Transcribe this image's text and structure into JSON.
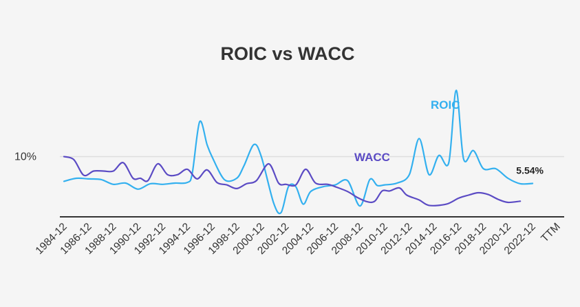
{
  "chart_data": {
    "type": "line",
    "title": "ROIC vs WACC",
    "xlabel": "",
    "ylabel": "",
    "ylim": [
      0,
      20
    ],
    "yticks": [
      {
        "value": 10,
        "label": "10%"
      }
    ],
    "grid": true,
    "categories": [
      "1984-12",
      "1986-12",
      "1988-12",
      "1990-12",
      "1992-12",
      "1994-12",
      "1996-12",
      "1998-12",
      "2000-12",
      "2002-12",
      "2004-12",
      "2006-12",
      "2008-12",
      "2010-12",
      "2012-12",
      "2014-12",
      "2016-12",
      "2018-12",
      "2020-12",
      "2022-12",
      "TTM"
    ],
    "series": [
      {
        "name": "ROIC",
        "label": "ROIC",
        "color": "#33b0ef",
        "points": [
          [
            0,
            5.9
          ],
          [
            0.5,
            6.4
          ],
          [
            1,
            6.3
          ],
          [
            1.5,
            6.2
          ],
          [
            2,
            5.4
          ],
          [
            2.5,
            5.6
          ],
          [
            3,
            4.6
          ],
          [
            3.5,
            5.5
          ],
          [
            4,
            5.4
          ],
          [
            4.5,
            5.6
          ],
          [
            5,
            5.7
          ],
          [
            5.2,
            7.2
          ],
          [
            5.5,
            15.8
          ],
          [
            5.8,
            12.0
          ],
          [
            6,
            10.0
          ],
          [
            6.5,
            6.2
          ],
          [
            7,
            6.4
          ],
          [
            7.3,
            8.5
          ],
          [
            7.7,
            12.0
          ],
          [
            8,
            10.0
          ],
          [
            8.5,
            2.3
          ],
          [
            8.8,
            0.7
          ],
          [
            9.1,
            5.0
          ],
          [
            9.4,
            5.0
          ],
          [
            9.7,
            2.1
          ],
          [
            10,
            4.2
          ],
          [
            10.5,
            5.0
          ],
          [
            11,
            5.3
          ],
          [
            11.5,
            6.0
          ],
          [
            12,
            1.8
          ],
          [
            12.4,
            6.2
          ],
          [
            12.7,
            5.2
          ],
          [
            13,
            5.3
          ],
          [
            13.5,
            5.6
          ],
          [
            14,
            7.0
          ],
          [
            14.4,
            13.0
          ],
          [
            14.8,
            7.0
          ],
          [
            15.2,
            10.2
          ],
          [
            15.6,
            9.0
          ],
          [
            15.9,
            21.0
          ],
          [
            16.2,
            9.6
          ],
          [
            16.6,
            11.0
          ],
          [
            17,
            8.0
          ],
          [
            17.5,
            8.0
          ],
          [
            18,
            6.4
          ],
          [
            18.5,
            5.5
          ],
          [
            19,
            5.54
          ]
        ]
      },
      {
        "name": "WACC",
        "label": "WACC",
        "color": "#5b4bc4",
        "points": [
          [
            0,
            10.0
          ],
          [
            0.4,
            9.5
          ],
          [
            0.8,
            6.9
          ],
          [
            1.2,
            7.6
          ],
          [
            1.6,
            7.6
          ],
          [
            2,
            7.6
          ],
          [
            2.4,
            9.0
          ],
          [
            2.8,
            6.4
          ],
          [
            3.1,
            6.4
          ],
          [
            3.4,
            6.0
          ],
          [
            3.8,
            8.8
          ],
          [
            4.2,
            7.0
          ],
          [
            4.6,
            7.0
          ],
          [
            5,
            7.9
          ],
          [
            5.4,
            6.3
          ],
          [
            5.8,
            7.8
          ],
          [
            6.2,
            5.7
          ],
          [
            6.6,
            5.3
          ],
          [
            7,
            4.7
          ],
          [
            7.4,
            5.5
          ],
          [
            7.8,
            6.0
          ],
          [
            8.3,
            8.8
          ],
          [
            8.7,
            5.6
          ],
          [
            9,
            5.4
          ],
          [
            9.4,
            5.3
          ],
          [
            9.8,
            7.9
          ],
          [
            10.2,
            5.6
          ],
          [
            10.7,
            5.4
          ],
          [
            11,
            5.0
          ],
          [
            11.5,
            4.2
          ],
          [
            11.9,
            3.2
          ],
          [
            12.3,
            2.5
          ],
          [
            12.6,
            2.6
          ],
          [
            12.9,
            4.3
          ],
          [
            13.2,
            4.3
          ],
          [
            13.6,
            4.8
          ],
          [
            13.9,
            3.6
          ],
          [
            14.4,
            2.8
          ],
          [
            14.8,
            1.9
          ],
          [
            15.5,
            2.1
          ],
          [
            16,
            3.1
          ],
          [
            16.4,
            3.6
          ],
          [
            16.8,
            4.0
          ],
          [
            17.2,
            3.7
          ],
          [
            17.6,
            2.9
          ],
          [
            18,
            2.4
          ],
          [
            18.5,
            2.6
          ]
        ]
      }
    ],
    "annotations": [
      {
        "series": "ROIC",
        "text": "5.54%"
      }
    ]
  }
}
